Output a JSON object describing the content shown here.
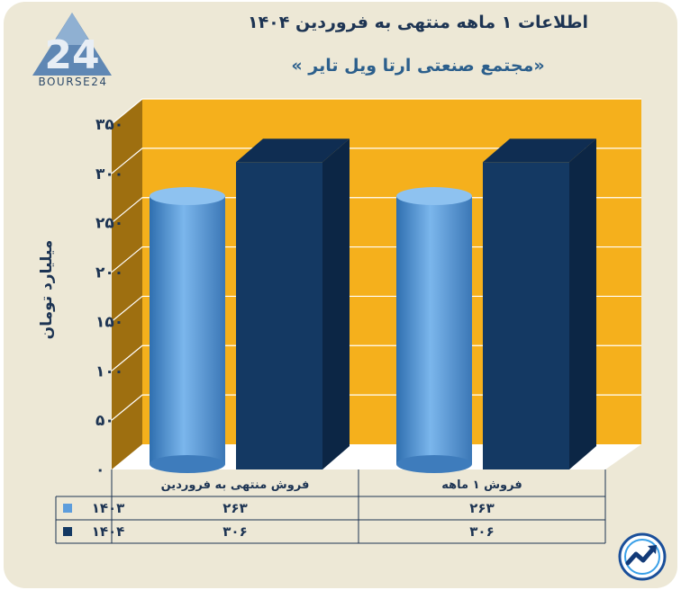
{
  "header": {
    "title": "اطلاعات ۱ ماهه منتهی به فروردین ۱۴۰۴",
    "subtitle": "«مجتمع صنعتی ارتا ویل تایر »"
  },
  "logo": {
    "text": "BOURSE24",
    "icon": "bourse24-logo"
  },
  "badge": {
    "icon": "trend-arrow-icon"
  },
  "colors": {
    "background": "#ede8d6",
    "wall": "#f5b01c",
    "wall_side": "#9e6f10",
    "floor": "#ffffff",
    "series_1403": "#5d9ddc",
    "series_1404": "#143963",
    "text": "#1d3453"
  },
  "chart_data": {
    "type": "bar",
    "ylabel": "میلیارد تومان",
    "ylim": [
      0,
      350
    ],
    "yticks": [
      0,
      50,
      100,
      150,
      200,
      250,
      300,
      350
    ],
    "ytick_labels": [
      "۰",
      "۵۰",
      "۱۰۰",
      "۱۵۰",
      "۲۰۰",
      "۲۵۰",
      "۳۰۰",
      "۳۵۰"
    ],
    "grid": true,
    "categories": [
      "فروش منتهی به  فروردین",
      "فروش ۱ ماهه"
    ],
    "series": [
      {
        "name": "۱۴۰۳",
        "values": [
          263,
          263
        ],
        "value_labels": [
          "۲۶۳",
          "۲۶۳"
        ],
        "shape": "cylinder",
        "color": "#5d9ddc"
      },
      {
        "name": "۱۴۰۴",
        "values": [
          306,
          306
        ],
        "value_labels": [
          "۳۰۶",
          "۳۰۶"
        ],
        "shape": "box",
        "color": "#143963"
      }
    ],
    "legend": "data-table-left"
  }
}
